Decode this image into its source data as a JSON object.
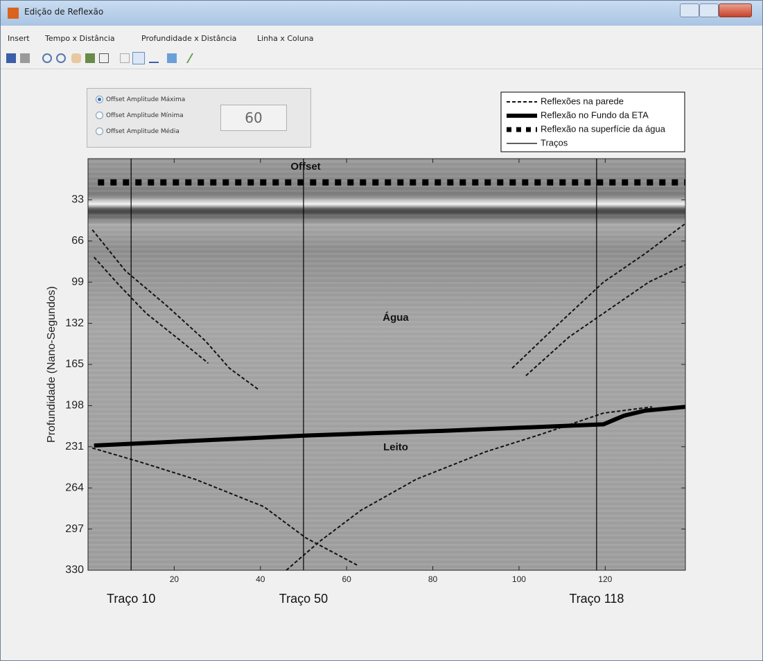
{
  "window": {
    "title": "Edição de Reflexão"
  },
  "menu": [
    "Insert",
    "Tempo x Distância",
    "Profundidade x Distância",
    "Linha x Coluna"
  ],
  "panel": {
    "options": [
      "Offset Amplitude Máxima",
      "Offset Amplitude Mínima",
      "Offset Amplitude Média"
    ],
    "selected": 0,
    "value": 60
  },
  "chart_data": {
    "type": "line",
    "ylabel": "Profundidade (Nano-Segundos)",
    "xlim": [
      0,
      138.6
    ],
    "ylim": [
      0,
      330
    ],
    "y_reversed": true,
    "xticks": [
      20,
      40,
      60,
      80,
      100,
      120
    ],
    "yticks": [
      33,
      66,
      99,
      132,
      165,
      198,
      231,
      264,
      297,
      330
    ],
    "annotations": [
      "Offset",
      "Água",
      "Leito"
    ],
    "series": [
      {
        "name": "Reflexões na parede",
        "color": "#111111",
        "style": "dashed",
        "x": [
          1.0,
          8.7,
          18.3,
          27.2,
          32.8,
          39.5,
          null,
          1.4,
          7.1,
          13.5,
          21.5,
          27.9,
          null,
          98.4,
          108.4,
          119.6,
          129.3,
          138.6,
          null,
          101.6,
          111.6,
          119.6,
          130.1,
          138.6,
          null,
          1.0,
          11.9,
          24.8,
          40.8,
          50.5,
          62.5,
          null,
          46,
          53.7,
          63.3,
          76.2,
          92.3,
          105.1,
          119.6,
          130.9
        ],
        "values": [
          57,
          90,
          118,
          146,
          168,
          185,
          null,
          79,
          101,
          124,
          146,
          164,
          null,
          168,
          135,
          99,
          76,
          52,
          null,
          174,
          143,
          124,
          99,
          85,
          null,
          232,
          243,
          257,
          279,
          304,
          326,
          null,
          330,
          307,
          282,
          257,
          235,
          221,
          204,
          199
        ]
      },
      {
        "name": "Reflexão no Fundo da ETA",
        "color": "#000000",
        "style": "thick",
        "x": [
          1.4,
          50.5,
          84.2,
          119.6,
          124.4,
          129.3,
          138.6
        ],
        "values": [
          230,
          222,
          218,
          213,
          206,
          202,
          199
        ]
      },
      {
        "name": "Reflexão na superfície da água",
        "color": "#000000",
        "style": "dotted",
        "x": [
          2.3,
          138.6
        ],
        "values": [
          19,
          19
        ]
      },
      {
        "name": "Traços",
        "color": "#000000",
        "style": "vertical",
        "x": [
          10,
          50,
          118
        ],
        "labels": [
          "Traço 10",
          "Traço 50",
          "Traço 118"
        ]
      }
    ]
  }
}
